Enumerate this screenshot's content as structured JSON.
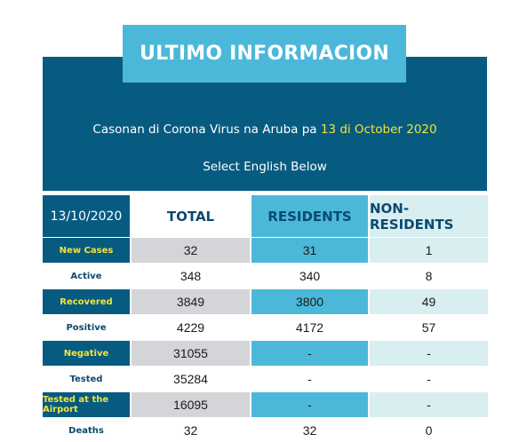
{
  "banner": {
    "title": "ULTIMO INFORMACION"
  },
  "header": {
    "subtitle_prefix": "Casonan di Corona Virus na Aruba pa ",
    "subtitle_date": "13 di October 2020",
    "select_english": "Select English Below"
  },
  "colors": {
    "dark_blue": "#075b80",
    "light_blue": "#4bb8d9",
    "pale_teal": "#d8eef1",
    "gray": "#d3d5d8",
    "yellow": "#f4e23c"
  },
  "table": {
    "headers": {
      "date": "13/10/2020",
      "total": "TOTAL",
      "residents": "RESIDENTS",
      "non_residents": "NON-RESIDENTS"
    },
    "rows": [
      {
        "label": "New Cases",
        "total": "32",
        "residents": "31",
        "non_residents": "1"
      },
      {
        "label": "Active",
        "total": "348",
        "residents": "340",
        "non_residents": "8"
      },
      {
        "label": "Recovered",
        "total": "3849",
        "residents": "3800",
        "non_residents": "49"
      },
      {
        "label": "Positive",
        "total": "4229",
        "residents": "4172",
        "non_residents": "57"
      },
      {
        "label": "Negative",
        "total": "31055",
        "residents": "-",
        "non_residents": "-"
      },
      {
        "label": "Tested",
        "total": "35284",
        "residents": "-",
        "non_residents": "-"
      },
      {
        "label": "Tested at the Airport",
        "total": "16095",
        "residents": "-",
        "non_residents": "-"
      },
      {
        "label": "Deaths",
        "total": "32",
        "residents": "32",
        "non_residents": "0"
      }
    ]
  }
}
